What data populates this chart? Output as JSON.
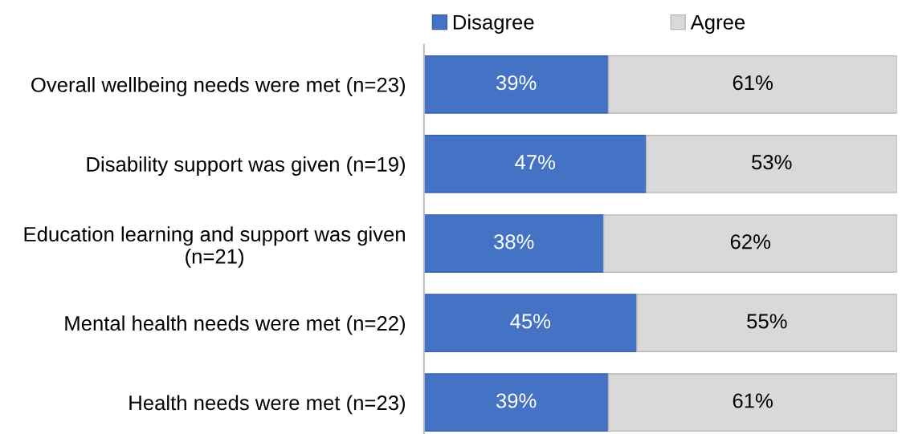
{
  "chart_data": {
    "type": "bar",
    "orientation": "horizontal",
    "stacked": true,
    "legend": "top",
    "categories": [
      "Overall wellbeing needs were met (n=23)",
      "Disability support was given (n=19)",
      "Education learning and support was given\n(n=21)",
      "Mental health needs were met (n=22)",
      "Health needs were met (n=23)"
    ],
    "series": [
      {
        "name": "Disagree",
        "color": "#4472c4",
        "values": [
          39,
          47,
          38,
          45,
          39
        ],
        "value_labels": [
          "39%",
          "47%",
          "38%",
          "45%",
          "39%"
        ]
      },
      {
        "name": "Agree",
        "color": "#d9d9d9",
        "values": [
          61,
          53,
          62,
          55,
          61
        ],
        "value_labels": [
          "61%",
          "53%",
          "62%",
          "55%",
          "61%"
        ]
      }
    ]
  }
}
